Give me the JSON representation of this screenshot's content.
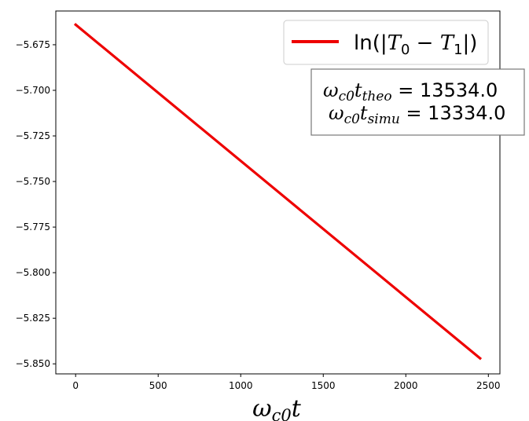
{
  "chart_data": {
    "type": "line",
    "title": "",
    "xlabel": {
      "base": "ω",
      "sub": "c0",
      "tail": "t"
    },
    "ylabel": "",
    "xlim": [
      -120,
      2570
    ],
    "ylim": [
      -5.8555,
      -5.6565
    ],
    "xticks": [
      0,
      500,
      1000,
      1500,
      2000,
      2500
    ],
    "xtick_labels": [
      "0",
      "500",
      "1000",
      "1500",
      "2000",
      "2500"
    ],
    "yticks": [
      -5.675,
      -5.7,
      -5.725,
      -5.75,
      -5.775,
      -5.8,
      -5.825,
      -5.85
    ],
    "ytick_labels": [
      "−5.675",
      "−5.700",
      "−5.725",
      "−5.750",
      "−5.775",
      "−5.800",
      "−5.825",
      "−5.850"
    ],
    "grid": false,
    "legend_position": "top-right",
    "series": [
      {
        "name": "ln(|T0 − T1|)",
        "name_parts": {
          "pre": "ln(|",
          "t0": "T",
          "s0": "0",
          "mid": " − ",
          "t1": "T",
          "s1": "1",
          "post": "|)"
        },
        "color": "#ee0000",
        "x": [
          0,
          2450
        ],
        "y": [
          -5.664,
          -5.847
        ]
      }
    ],
    "annotation": {
      "line1": {
        "sub": "c0",
        "sub2": "theo",
        "value": " = 13534.0"
      },
      "line2": {
        "sub": "c0",
        "sub2": "simu",
        "value": " = 13334.0"
      }
    }
  }
}
